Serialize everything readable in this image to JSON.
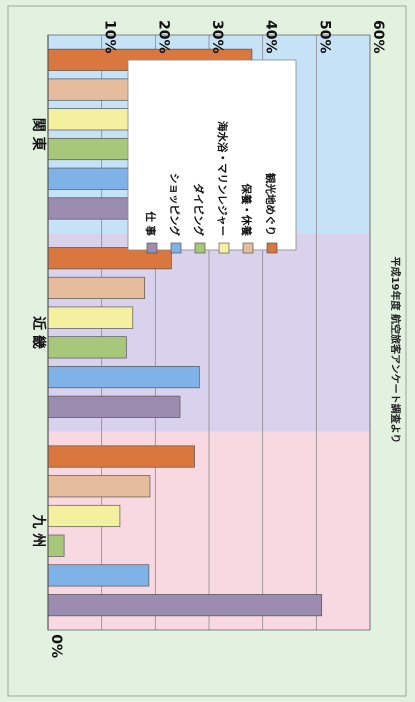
{
  "chart_data": {
    "type": "bar",
    "orientation": "horizontal-rotated",
    "categories": [
      "関 東",
      "近 畿",
      "九 州"
    ],
    "series": [
      {
        "name": "観光地めぐり",
        "color": "#d9773f",
        "values": [
          38,
          23,
          27.3
        ]
      },
      {
        "name": "保養・休養",
        "color": "#e6bd9c",
        "values": [
          31,
          18,
          19
        ]
      },
      {
        "name": "海水浴・マリンレジャー",
        "color": "#f5f0a0",
        "values": [
          20,
          15.8,
          13.4
        ]
      },
      {
        "name": "ダイビング",
        "color": "#a7c87a",
        "values": [
          18.2,
          14.6,
          3
        ]
      },
      {
        "name": "ショッピング",
        "color": "#7fb2e6",
        "values": [
          25,
          28.2,
          18.8
        ]
      },
      {
        "name": "仕 事",
        "color": "#9b8cb0",
        "values": [
          20.9,
          24.6,
          51
        ]
      }
    ],
    "ylim": [
      0,
      60
    ],
    "ticks": [
      "0%",
      "10%",
      "20%",
      "30%",
      "40%",
      "50%",
      "60%"
    ],
    "tick_values": [
      0,
      10,
      20,
      30,
      40,
      50,
      60
    ],
    "region_colors": [
      "#c6e2f7",
      "#d9d2ec",
      "#f8d9e2"
    ],
    "source_note": "平成19年度 航空旅客アンケート調査より",
    "legend_position": "top-left"
  }
}
